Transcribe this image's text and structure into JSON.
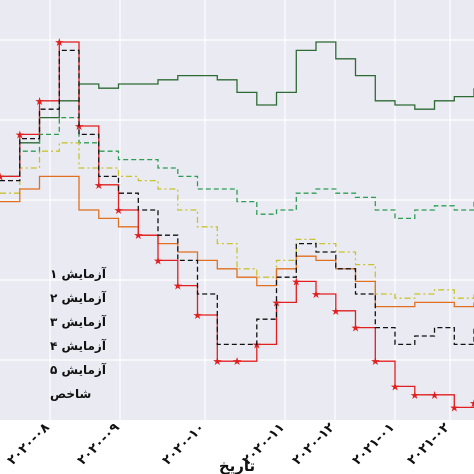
{
  "chart_data": {
    "type": "line",
    "xlabel": "تاریخ",
    "x_ticks": [
      "۲۰۲۰-۰۸",
      "۲۰۲۰-۰۹",
      "۲۰۲۰-۱۰",
      "۲۰۲۰-۱۱",
      "۲۰۲۰-۱۲",
      "۲۰۲۱-۰۱",
      "۲۰۲۱-۰۲"
    ],
    "x": [
      0,
      0.25,
      0.5,
      0.75,
      1.0,
      1.25,
      1.5,
      1.75,
      2.0,
      2.25,
      2.5,
      2.75,
      3.0,
      3.25,
      3.5,
      3.75,
      4.0,
      4.25,
      4.5,
      4.75,
      5.0,
      5.25,
      5.5,
      5.75,
      6.0
    ],
    "xlim": [
      0,
      6
    ],
    "ylim": [
      0,
      100
    ],
    "grid": true,
    "background": "#eaeaf2",
    "legend_position": "left",
    "series": [
      {
        "name": "آزمایش ۱",
        "color": "#2e6b34",
        "style": "solid",
        "marker": "none",
        "values": [
          58,
          66,
          72,
          76,
          80,
          79,
          80,
          80,
          81,
          82,
          82,
          81,
          78,
          75,
          78,
          88,
          90,
          86,
          82,
          76,
          75,
          74,
          76,
          77,
          79
        ]
      },
      {
        "name": "آزمایش ۲",
        "color": "#2e9e55",
        "style": "dashed",
        "marker": "none",
        "values": [
          58,
          64,
          68,
          72,
          66,
          64,
          62,
          62,
          60,
          58,
          55,
          55,
          52,
          49,
          50,
          54,
          55,
          54,
          53,
          50,
          48,
          50,
          51,
          50,
          52
        ]
      },
      {
        "name": "آزمایش ۳",
        "color": "#c8c430",
        "style": "dashdot",
        "marker": "none",
        "values": [
          54,
          60,
          64,
          66,
          60,
          60,
          58,
          57,
          55,
          50,
          46,
          42,
          36,
          34,
          38,
          43,
          42,
          40,
          37,
          30,
          29,
          30,
          31,
          29,
          30
        ]
      },
      {
        "name": "آزمایش ۴",
        "color": "#e07020",
        "style": "solid",
        "marker": "none",
        "values": [
          52,
          55,
          58,
          58,
          50,
          48,
          46,
          44,
          42,
          40,
          38,
          36,
          34,
          32,
          36,
          39,
          38,
          36,
          33,
          27,
          27,
          28,
          28,
          27,
          28
        ]
      },
      {
        "name": "آزمایش ۵",
        "color": "#e02020",
        "style": "solid",
        "marker": "star",
        "values": [
          58,
          68,
          76,
          90,
          70,
          56,
          50,
          44,
          38,
          32,
          25,
          14,
          14,
          18,
          28,
          33,
          30,
          26,
          22,
          14,
          8,
          6,
          6,
          3,
          4
        ]
      },
      {
        "name": "شاخص",
        "color": "#111111",
        "style": "dashed",
        "marker": "none",
        "values": [
          57,
          67,
          74,
          88,
          68,
          58,
          54,
          50,
          44,
          38,
          30,
          18,
          18,
          24,
          34,
          42,
          40,
          36,
          30,
          22,
          18,
          20,
          22,
          18,
          22
        ]
      }
    ]
  }
}
